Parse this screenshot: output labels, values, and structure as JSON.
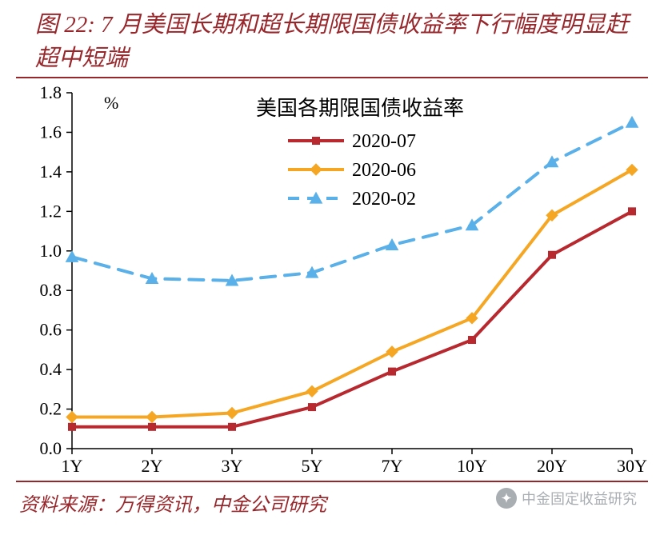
{
  "title_text": "图 22: 7 月美国长期和超长期限国债收益率下行幅度明显赶超中短端",
  "source_text": "资料来源：万得资讯，中金公司研究",
  "watermark_text": "中金固定收益研究",
  "chart": {
    "type": "line",
    "inner_title": "美国各期限国债收益率",
    "inner_title_fontsize": 26,
    "y_unit_label": "%",
    "y_unit_fontsize": 22,
    "label_fontsize": 22,
    "tick_fontsize": 22,
    "text_color": "#000000",
    "legend_fontsize": 24,
    "background_color": "#ffffff",
    "plot_border_color": "#000000",
    "plot_border_width": 1.5,
    "tick_length": 7,
    "x": {
      "categories": [
        "1Y",
        "2Y",
        "3Y",
        "5Y",
        "7Y",
        "10Y",
        "20Y",
        "30Y"
      ]
    },
    "y": {
      "lim": [
        0.0,
        1.8
      ],
      "tick_step": 0.2,
      "ticks": [
        0.0,
        0.2,
        0.4,
        0.6,
        0.8,
        1.0,
        1.2,
        1.4,
        1.6,
        1.8
      ]
    },
    "series": [
      {
        "name": "2020-07",
        "color": "#b8292f",
        "marker": "square",
        "marker_size": 10,
        "line_width": 4,
        "dash": "solid",
        "values": [
          0.11,
          0.11,
          0.11,
          0.21,
          0.39,
          0.55,
          0.98,
          1.2
        ]
      },
      {
        "name": "2020-06",
        "color": "#f5a623",
        "marker": "diamond",
        "marker_size": 10,
        "line_width": 4,
        "dash": "solid",
        "values": [
          0.16,
          0.16,
          0.18,
          0.29,
          0.49,
          0.66,
          1.18,
          1.41
        ]
      },
      {
        "name": "2020-02",
        "color": "#5ab0e8",
        "marker": "triangle",
        "marker_size": 10,
        "line_width": 4,
        "dash": "dashed",
        "values": [
          0.97,
          0.86,
          0.85,
          0.89,
          1.03,
          1.13,
          1.45,
          1.65
        ]
      }
    ],
    "legend": {
      "position": "top-inside"
    }
  }
}
